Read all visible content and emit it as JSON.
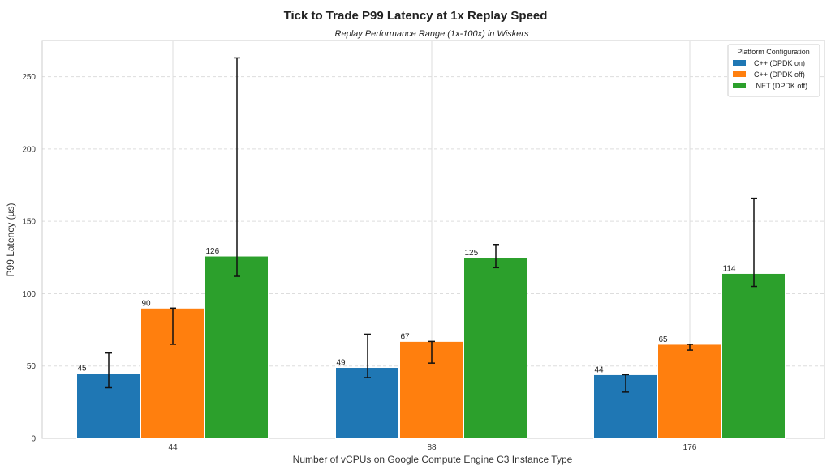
{
  "chart_data": {
    "type": "bar",
    "title": "Tick to Trade P99 Latency at 1x Replay Speed",
    "subtitle": "Replay Performance Range (1x-100x) in Wiskers",
    "xlabel": "Number of vCPUs on Google Compute Engine C3 Instance Type",
    "ylabel": "P99 Latency (µs)",
    "categories": [
      "44",
      "88",
      "176"
    ],
    "ylim": [
      0,
      275
    ],
    "yticks": [
      0,
      50,
      100,
      150,
      200,
      250
    ],
    "grid": true,
    "legend_title": "Platform Configuration",
    "legend_position": "top-right",
    "series": [
      {
        "name": "C++ (DPDK on)",
        "color": "#1f77b4",
        "values": [
          45,
          49,
          44
        ],
        "err_low": [
          35,
          42,
          32
        ],
        "err_high": [
          59,
          72,
          44
        ]
      },
      {
        "name": "C++ (DPDK off)",
        "color": "#ff7f0e",
        "values": [
          90,
          67,
          65
        ],
        "err_low": [
          65,
          52,
          61
        ],
        "err_high": [
          90,
          67,
          65
        ]
      },
      {
        "name": ".NET (DPDK off)",
        "color": "#2ca02c",
        "values": [
          126,
          125,
          114
        ],
        "err_low": [
          112,
          118,
          105
        ],
        "err_high": [
          263,
          134,
          166
        ]
      }
    ]
  }
}
